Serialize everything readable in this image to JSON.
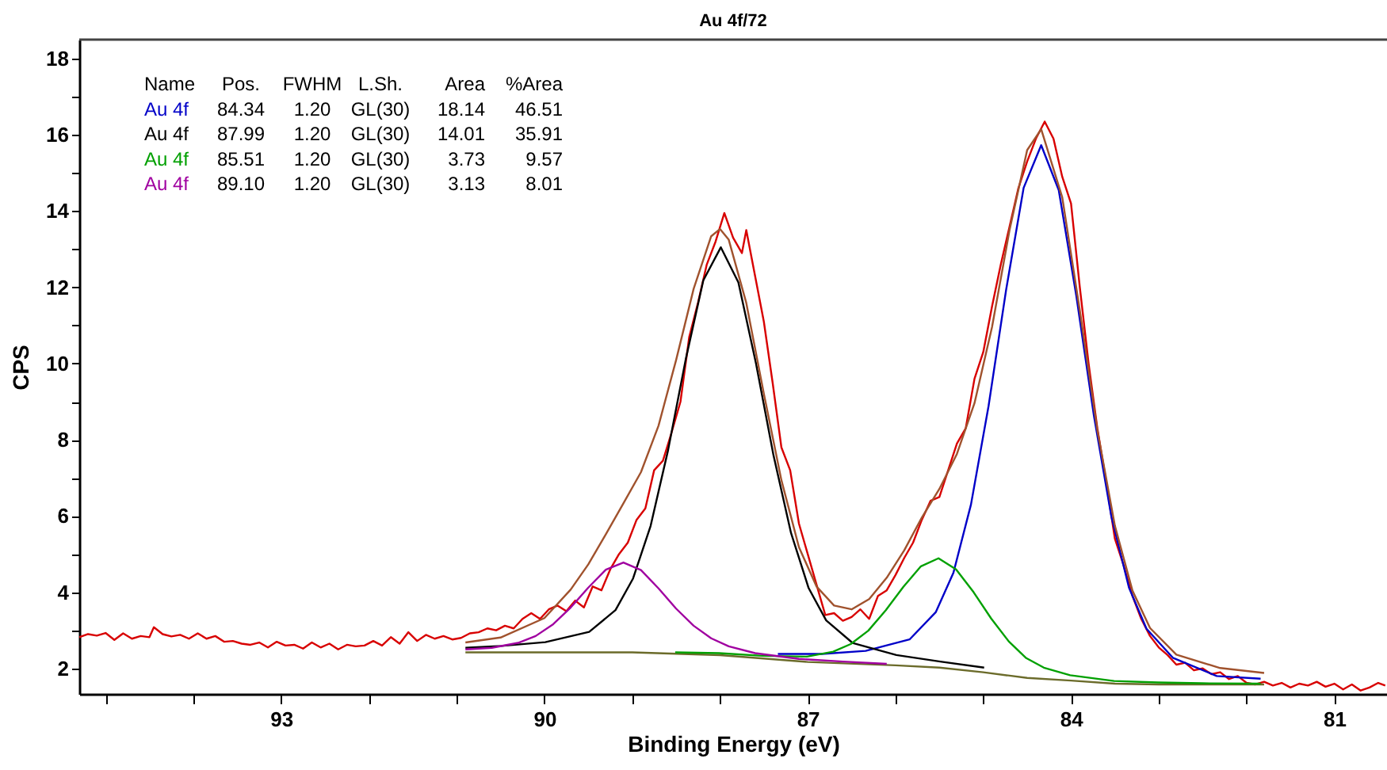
{
  "chart_data": {
    "type": "line",
    "title": "Au 4f/72",
    "xlabel": "Binding Energy (eV)",
    "ylabel": "CPS",
    "xlim": [
      95.3,
      80.4
    ],
    "ylim": [
      1.33,
      18.5
    ],
    "xticks": [
      {
        "value": 95,
        "label": null
      },
      {
        "value": 94,
        "label": null
      },
      93,
      {
        "value": 92,
        "label": null
      },
      {
        "value": 91,
        "label": null
      },
      90,
      {
        "value": 89,
        "label": null
      },
      {
        "value": 88,
        "label": null
      },
      87,
      {
        "value": 86,
        "label": null
      },
      {
        "value": 85,
        "label": null
      },
      84,
      {
        "value": 83,
        "label": null
      },
      {
        "value": 82,
        "label": null
      },
      81
    ],
    "yticks": [
      2,
      {
        "value": 3,
        "label": null
      },
      4,
      {
        "value": 5,
        "label": null
      },
      6,
      {
        "value": 7,
        "label": null
      },
      8,
      {
        "value": 9,
        "label": null
      },
      10,
      {
        "value": 11,
        "label": null
      },
      12,
      {
        "value": 13,
        "label": null
      },
      14,
      {
        "value": 15,
        "label": null
      },
      16,
      {
        "value": 17,
        "label": null
      },
      18
    ],
    "grid": false,
    "legend": false,
    "marker": "none",
    "line_style": "solid",
    "annotations": [
      "Name",
      "Pos.",
      "FWHM",
      "L.Sh.",
      "Area",
      "%Area",
      "Au 4f",
      "84.34",
      "1.20",
      "GL(30)",
      "18.14",
      "46.51",
      "Au 4f",
      "87.99",
      "1.20",
      "GL(30)",
      "14.01",
      "35.91",
      "Au 4f",
      "85.51",
      "1.20",
      "GL(30)",
      "3.73",
      "9.57",
      "Au 4f",
      "89.10",
      "1.20",
      "GL(30)",
      "3.13",
      "8.01"
    ],
    "series": [
      {
        "color": "#d80000",
        "x": [
          95.3,
          95.2,
          95.1,
          95.0,
          94.9,
          94.8,
          94.7,
          94.6,
          94.5,
          94.45,
          94.35,
          94.25,
          94.15,
          94.05,
          93.95,
          93.85,
          93.75,
          93.65,
          93.55,
          93.45,
          93.35,
          93.25,
          93.15,
          93.05,
          92.95,
          92.85,
          92.75,
          92.65,
          92.55,
          92.45,
          92.35,
          92.25,
          92.15,
          92.05,
          91.95,
          91.85,
          91.75,
          91.65,
          91.55,
          91.45,
          91.35,
          91.25,
          91.15,
          91.05,
          90.95,
          90.85,
          90.75,
          90.65,
          90.55,
          90.45,
          90.35,
          90.25,
          90.15,
          90.05,
          89.95,
          89.85,
          89.75,
          89.65,
          89.55,
          89.45,
          89.35,
          89.25,
          89.15,
          89.05,
          88.95,
          88.85,
          88.75,
          88.65,
          88.55,
          88.45,
          88.35,
          88.25,
          88.15,
          88.05,
          87.95,
          87.85,
          87.75,
          87.7,
          87.6,
          87.5,
          87.4,
          87.3,
          87.2,
          87.1,
          87.0,
          86.9,
          86.8,
          86.7,
          86.6,
          86.5,
          86.4,
          86.3,
          86.2,
          86.1,
          86.0,
          85.9,
          85.8,
          85.7,
          85.6,
          85.5,
          85.4,
          85.3,
          85.2,
          85.1,
          85.0,
          84.9,
          84.8,
          84.7,
          84.6,
          84.5,
          84.4,
          84.3,
          84.2,
          84.1,
          84.0,
          83.9,
          83.8,
          83.7,
          83.6,
          83.5,
          83.4,
          83.3,
          83.2,
          83.1,
          83.0,
          82.9,
          82.8,
          82.7,
          82.6,
          82.5,
          82.4,
          82.3,
          82.2,
          82.1,
          82.0,
          81.9,
          81.8,
          81.7,
          81.6,
          81.5,
          81.4,
          81.3,
          81.2,
          81.1,
          81.0,
          80.9,
          80.8,
          80.7,
          80.6,
          80.5,
          80.42
        ],
        "values": [
          2.82,
          2.9,
          2.86,
          2.93,
          2.75,
          2.92,
          2.78,
          2.85,
          2.82,
          3.08,
          2.9,
          2.84,
          2.88,
          2.78,
          2.92,
          2.78,
          2.85,
          2.7,
          2.72,
          2.65,
          2.62,
          2.68,
          2.55,
          2.7,
          2.6,
          2.62,
          2.52,
          2.68,
          2.55,
          2.65,
          2.5,
          2.62,
          2.58,
          2.6,
          2.72,
          2.6,
          2.82,
          2.65,
          2.95,
          2.72,
          2.88,
          2.78,
          2.85,
          2.76,
          2.8,
          2.92,
          2.95,
          3.05,
          3.0,
          3.12,
          3.05,
          3.3,
          3.45,
          3.3,
          3.55,
          3.65,
          3.5,
          3.78,
          3.6,
          4.15,
          4.05,
          4.6,
          5.0,
          5.3,
          5.9,
          6.2,
          7.2,
          7.45,
          8.2,
          9.0,
          10.7,
          11.6,
          12.6,
          13.2,
          13.95,
          13.3,
          12.9,
          13.5,
          12.3,
          11.1,
          9.5,
          7.8,
          7.2,
          5.8,
          5.0,
          4.2,
          3.4,
          3.45,
          3.25,
          3.35,
          3.55,
          3.3,
          3.9,
          4.05,
          4.45,
          4.9,
          5.3,
          5.9,
          6.4,
          6.5,
          7.2,
          7.9,
          8.3,
          9.6,
          10.3,
          11.5,
          12.6,
          13.6,
          14.6,
          15.3,
          15.9,
          16.35,
          15.9,
          14.9,
          14.2,
          12.0,
          10.0,
          8.3,
          6.9,
          5.4,
          4.7,
          3.9,
          3.3,
          2.85,
          2.55,
          2.35,
          2.1,
          2.15,
          1.95,
          2.0,
          1.85,
          1.9,
          1.72,
          1.8,
          1.62,
          1.58,
          1.65,
          1.55,
          1.62,
          1.5,
          1.6,
          1.55,
          1.65,
          1.52,
          1.6,
          1.45,
          1.58,
          1.42,
          1.5,
          1.62,
          1.55
        ]
      },
      {
        "color": "#6b6b2a",
        "x": [
          90.9,
          89.0,
          88.0,
          87.0,
          86.0,
          85.5,
          85.0,
          84.5,
          84.0,
          83.5,
          83.0,
          82.0,
          81.8
        ],
        "values": [
          2.42,
          2.42,
          2.35,
          2.17,
          2.08,
          2.02,
          1.9,
          1.75,
          1.68,
          1.6,
          1.58,
          1.58,
          1.58
        ]
      },
      {
        "color": "#0000c8",
        "x": [
          87.34,
          86.84,
          86.34,
          85.84,
          85.54,
          85.34,
          85.14,
          84.94,
          84.74,
          84.54,
          84.34,
          84.14,
          83.94,
          83.74,
          83.54,
          83.34,
          83.14,
          82.84,
          82.34,
          81.84
        ],
        "values": [
          2.38,
          2.38,
          2.46,
          2.76,
          3.48,
          4.51,
          6.3,
          8.88,
          11.93,
          14.61,
          15.73,
          14.55,
          11.78,
          8.64,
          5.98,
          4.12,
          3.04,
          2.28,
          1.8,
          1.73
        ]
      },
      {
        "color": "#000000",
        "x": [
          90.9,
          90.49,
          89.99,
          89.49,
          89.19,
          88.99,
          88.79,
          88.59,
          88.39,
          88.19,
          87.99,
          87.79,
          87.59,
          87.39,
          87.19,
          86.99,
          86.79,
          86.49,
          85.99,
          85.49,
          84.99
        ],
        "values": [
          2.54,
          2.59,
          2.69,
          2.96,
          3.53,
          4.36,
          5.74,
          7.74,
          10.11,
          12.18,
          13.05,
          12.13,
          10.01,
          7.59,
          5.55,
          4.11,
          3.26,
          2.67,
          2.35,
          2.18,
          2.02
        ]
      },
      {
        "color": "#00a000",
        "x": [
          88.51,
          88.01,
          87.51,
          87.01,
          86.71,
          86.51,
          86.31,
          86.11,
          85.91,
          85.71,
          85.51,
          85.31,
          85.11,
          84.91,
          84.71,
          84.51,
          84.31,
          84.01,
          83.51,
          83.01,
          82.51,
          81.84
        ],
        "values": [
          2.42,
          2.4,
          2.33,
          2.31,
          2.44,
          2.64,
          2.99,
          3.53,
          4.14,
          4.68,
          4.89,
          4.6,
          4.0,
          3.31,
          2.71,
          2.27,
          2.02,
          1.82,
          1.67,
          1.63,
          1.61,
          1.6
        ]
      },
      {
        "color": "#a000a0",
        "x": [
          90.9,
          90.6,
          90.3,
          90.1,
          89.9,
          89.7,
          89.5,
          89.3,
          89.1,
          88.9,
          88.7,
          88.5,
          88.3,
          88.1,
          87.9,
          87.6,
          87.1,
          86.6,
          86.1
        ],
        "values": [
          2.5,
          2.54,
          2.67,
          2.85,
          3.16,
          3.6,
          4.12,
          4.59,
          4.78,
          4.58,
          4.1,
          3.57,
          3.12,
          2.79,
          2.58,
          2.4,
          2.25,
          2.18,
          2.12
        ]
      },
      {
        "color": "#a0522d",
        "x": [
          90.9,
          90.5,
          90.0,
          89.7,
          89.5,
          89.3,
          89.1,
          88.9,
          88.7,
          88.5,
          88.3,
          88.1,
          88.0,
          87.9,
          87.7,
          87.5,
          87.3,
          87.1,
          86.9,
          86.7,
          86.5,
          86.3,
          86.1,
          85.9,
          85.7,
          85.5,
          85.3,
          85.1,
          84.9,
          84.7,
          84.5,
          84.34,
          84.1,
          83.9,
          83.7,
          83.5,
          83.3,
          83.1,
          82.8,
          82.3,
          81.8
        ],
        "values": [
          2.68,
          2.81,
          3.32,
          4.07,
          4.73,
          5.52,
          6.33,
          7.15,
          8.37,
          10.09,
          11.96,
          13.34,
          13.53,
          13.25,
          11.59,
          9.21,
          6.94,
          5.18,
          4.15,
          3.65,
          3.55,
          3.82,
          4.38,
          5.1,
          5.96,
          6.71,
          7.63,
          8.96,
          10.96,
          13.51,
          15.6,
          16.15,
          14.36,
          11.39,
          8.25,
          5.74,
          4.04,
          3.06,
          2.36,
          2.01,
          1.88
        ]
      }
    ]
  }
}
